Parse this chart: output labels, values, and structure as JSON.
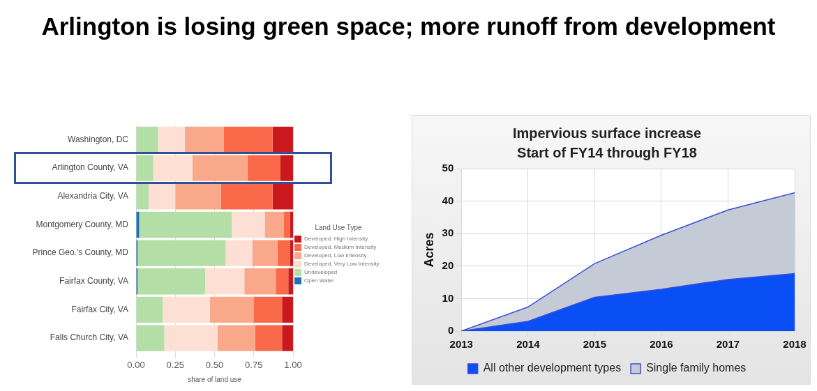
{
  "chart_data": [
    {
      "type": "bar",
      "title": "Arlington is losing green space; more runoff from development",
      "orientation": "horizontal",
      "stacked": true,
      "xlabel": "share of land use",
      "legend_title": "Land Use Type",
      "legend": "right",
      "grid": "x",
      "categories": [
        "Washington, DC",
        "Arlington County, VA",
        "Alexandria City, VA",
        "Montgomery County, MD",
        "Prince Geo.'s County, MD",
        "Fairfax County, VA",
        "Fairfax City, VA",
        "Falls Church City, VA"
      ],
      "xlim": [
        0,
        1
      ],
      "xticks": [
        {
          "value": 0,
          "label": "0.00"
        },
        {
          "value": 0.25,
          "label": "0.25"
        },
        {
          "value": 0.5,
          "label": "0.50"
        },
        {
          "value": 0.75,
          "label": "0.75"
        },
        {
          "value": 1,
          "label": "1.00"
        }
      ],
      "series": [
        {
          "name": "Open Water",
          "color": "#2171b5",
          "values": [
            0,
            0,
            0,
            0.02,
            0.01,
            0.01,
            0,
            0
          ]
        },
        {
          "name": "Undeveloped",
          "color": "#b3dfa6",
          "values": [
            0.14,
            0.11,
            0.08,
            0.59,
            0.56,
            0.43,
            0.17,
            0.18
          ]
        },
        {
          "name": "Developed, Very Low Intensity",
          "color": "#fde0d3",
          "values": [
            0.17,
            0.25,
            0.17,
            0.21,
            0.17,
            0.25,
            0.3,
            0.34
          ]
        },
        {
          "name": "Developed, Low Intensity",
          "color": "#f9a98a",
          "values": [
            0.25,
            0.35,
            0.29,
            0.12,
            0.16,
            0.2,
            0.28,
            0.24
          ]
        },
        {
          "name": "Developed, Medium Intensity",
          "color": "#fa6a4a",
          "values": [
            0.31,
            0.21,
            0.33,
            0.04,
            0.08,
            0.08,
            0.18,
            0.17
          ]
        },
        {
          "name": "Developed, High Intensity",
          "color": "#cb181d",
          "values": [
            0.13,
            0.08,
            0.13,
            0.02,
            0.02,
            0.03,
            0.07,
            0.07
          ]
        }
      ]
    },
    {
      "type": "area",
      "title": "Impervious surface increase",
      "subtitle": "Start of FY14 through FY18",
      "ylabel": "Acres",
      "stacked": true,
      "legend": "bottom",
      "grid": true,
      "marker": "none",
      "categories": [
        "2013",
        "2014",
        "2015",
        "2016",
        "2017",
        "2018"
      ],
      "ylim": [
        0,
        50
      ],
      "yticks": [
        0,
        10,
        20,
        30,
        40,
        50
      ],
      "series": [
        {
          "name": "All other development types",
          "color": "#0a4ff5",
          "values": [
            0,
            3,
            10.4,
            12.9,
            15.9,
            17.7
          ]
        },
        {
          "name": "Single family homes",
          "color": "#c5cbd6",
          "values": [
            0,
            4.4,
            10.4,
            16.6,
            21.4,
            24.9
          ]
        }
      ]
    }
  ]
}
